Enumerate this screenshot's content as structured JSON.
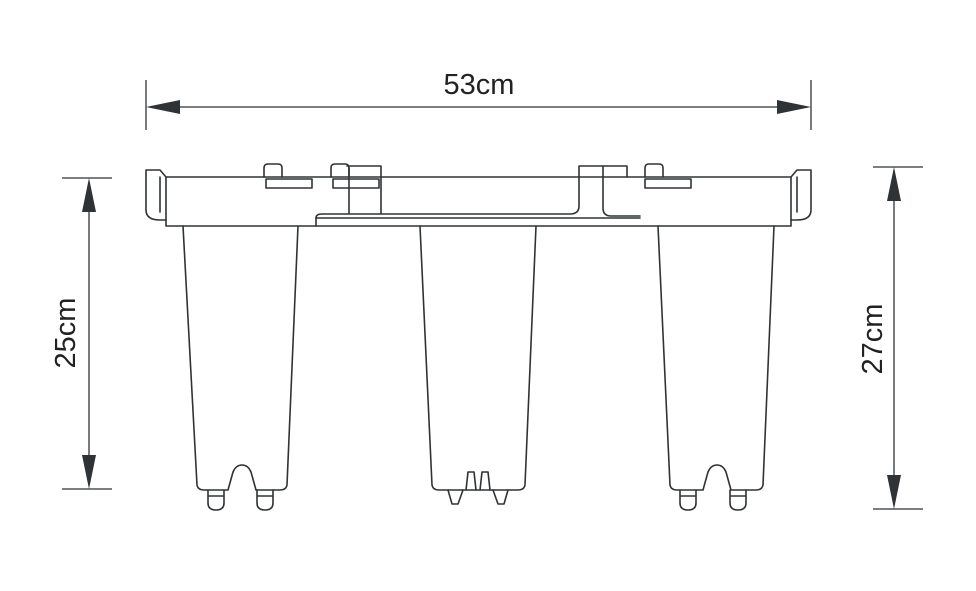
{
  "dimensions": {
    "width_label": "53cm",
    "left_height_label": "25cm",
    "right_height_label": "27cm"
  },
  "colors": {
    "line": "#2f3335",
    "text": "#222222",
    "background": "#ffffff"
  }
}
